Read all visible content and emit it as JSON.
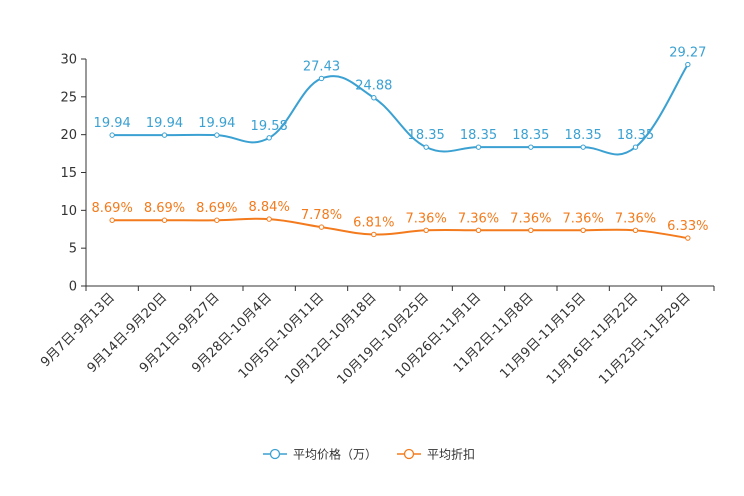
{
  "colors": {
    "price": "#3ba1d2",
    "discount": "#f37b1d",
    "axis": "#333333",
    "background": "#ffffff"
  },
  "chart_data": {
    "type": "line",
    "title": "",
    "xlabel": "",
    "ylabel": "",
    "ylim": [
      0,
      30
    ],
    "yticks": [
      0,
      5,
      10,
      15,
      20,
      25,
      30
    ],
    "grid": false,
    "legend_position": "bottom-center",
    "categories": [
      "9月7日-9月13日",
      "9月14日-9月20日",
      "9月21日-9月27日",
      "9月28日-10月4日",
      "10月5日-10月11日",
      "10月12日-10月18日",
      "10月19日-10月25日",
      "10月26日-11月1日",
      "11月2日-11月8日",
      "11月9日-11月15日",
      "11月16日-11月22日",
      "11月23日-11月29日"
    ],
    "series": [
      {
        "name": "平均价格（万）",
        "color": "#3ba1d2",
        "values": [
          19.94,
          19.94,
          19.94,
          19.58,
          27.43,
          24.88,
          18.35,
          18.35,
          18.35,
          18.35,
          18.35,
          29.27
        ],
        "labels": [
          "19.94",
          "19.94",
          "19.94",
          "19.58",
          "27.43",
          "24.88",
          "18.35",
          "18.35",
          "18.35",
          "18.35",
          "18.35",
          "29.27"
        ]
      },
      {
        "name": "平均折扣",
        "color": "#f37b1d",
        "values": [
          8.69,
          8.69,
          8.69,
          8.84,
          7.78,
          6.81,
          7.36,
          7.36,
          7.36,
          7.36,
          7.36,
          6.33
        ],
        "labels": [
          "8.69%",
          "8.69%",
          "8.69%",
          "8.84%",
          "7.78%",
          "6.81%",
          "7.36%",
          "7.36%",
          "7.36%",
          "7.36%",
          "7.36%",
          "6.33%"
        ]
      }
    ]
  }
}
